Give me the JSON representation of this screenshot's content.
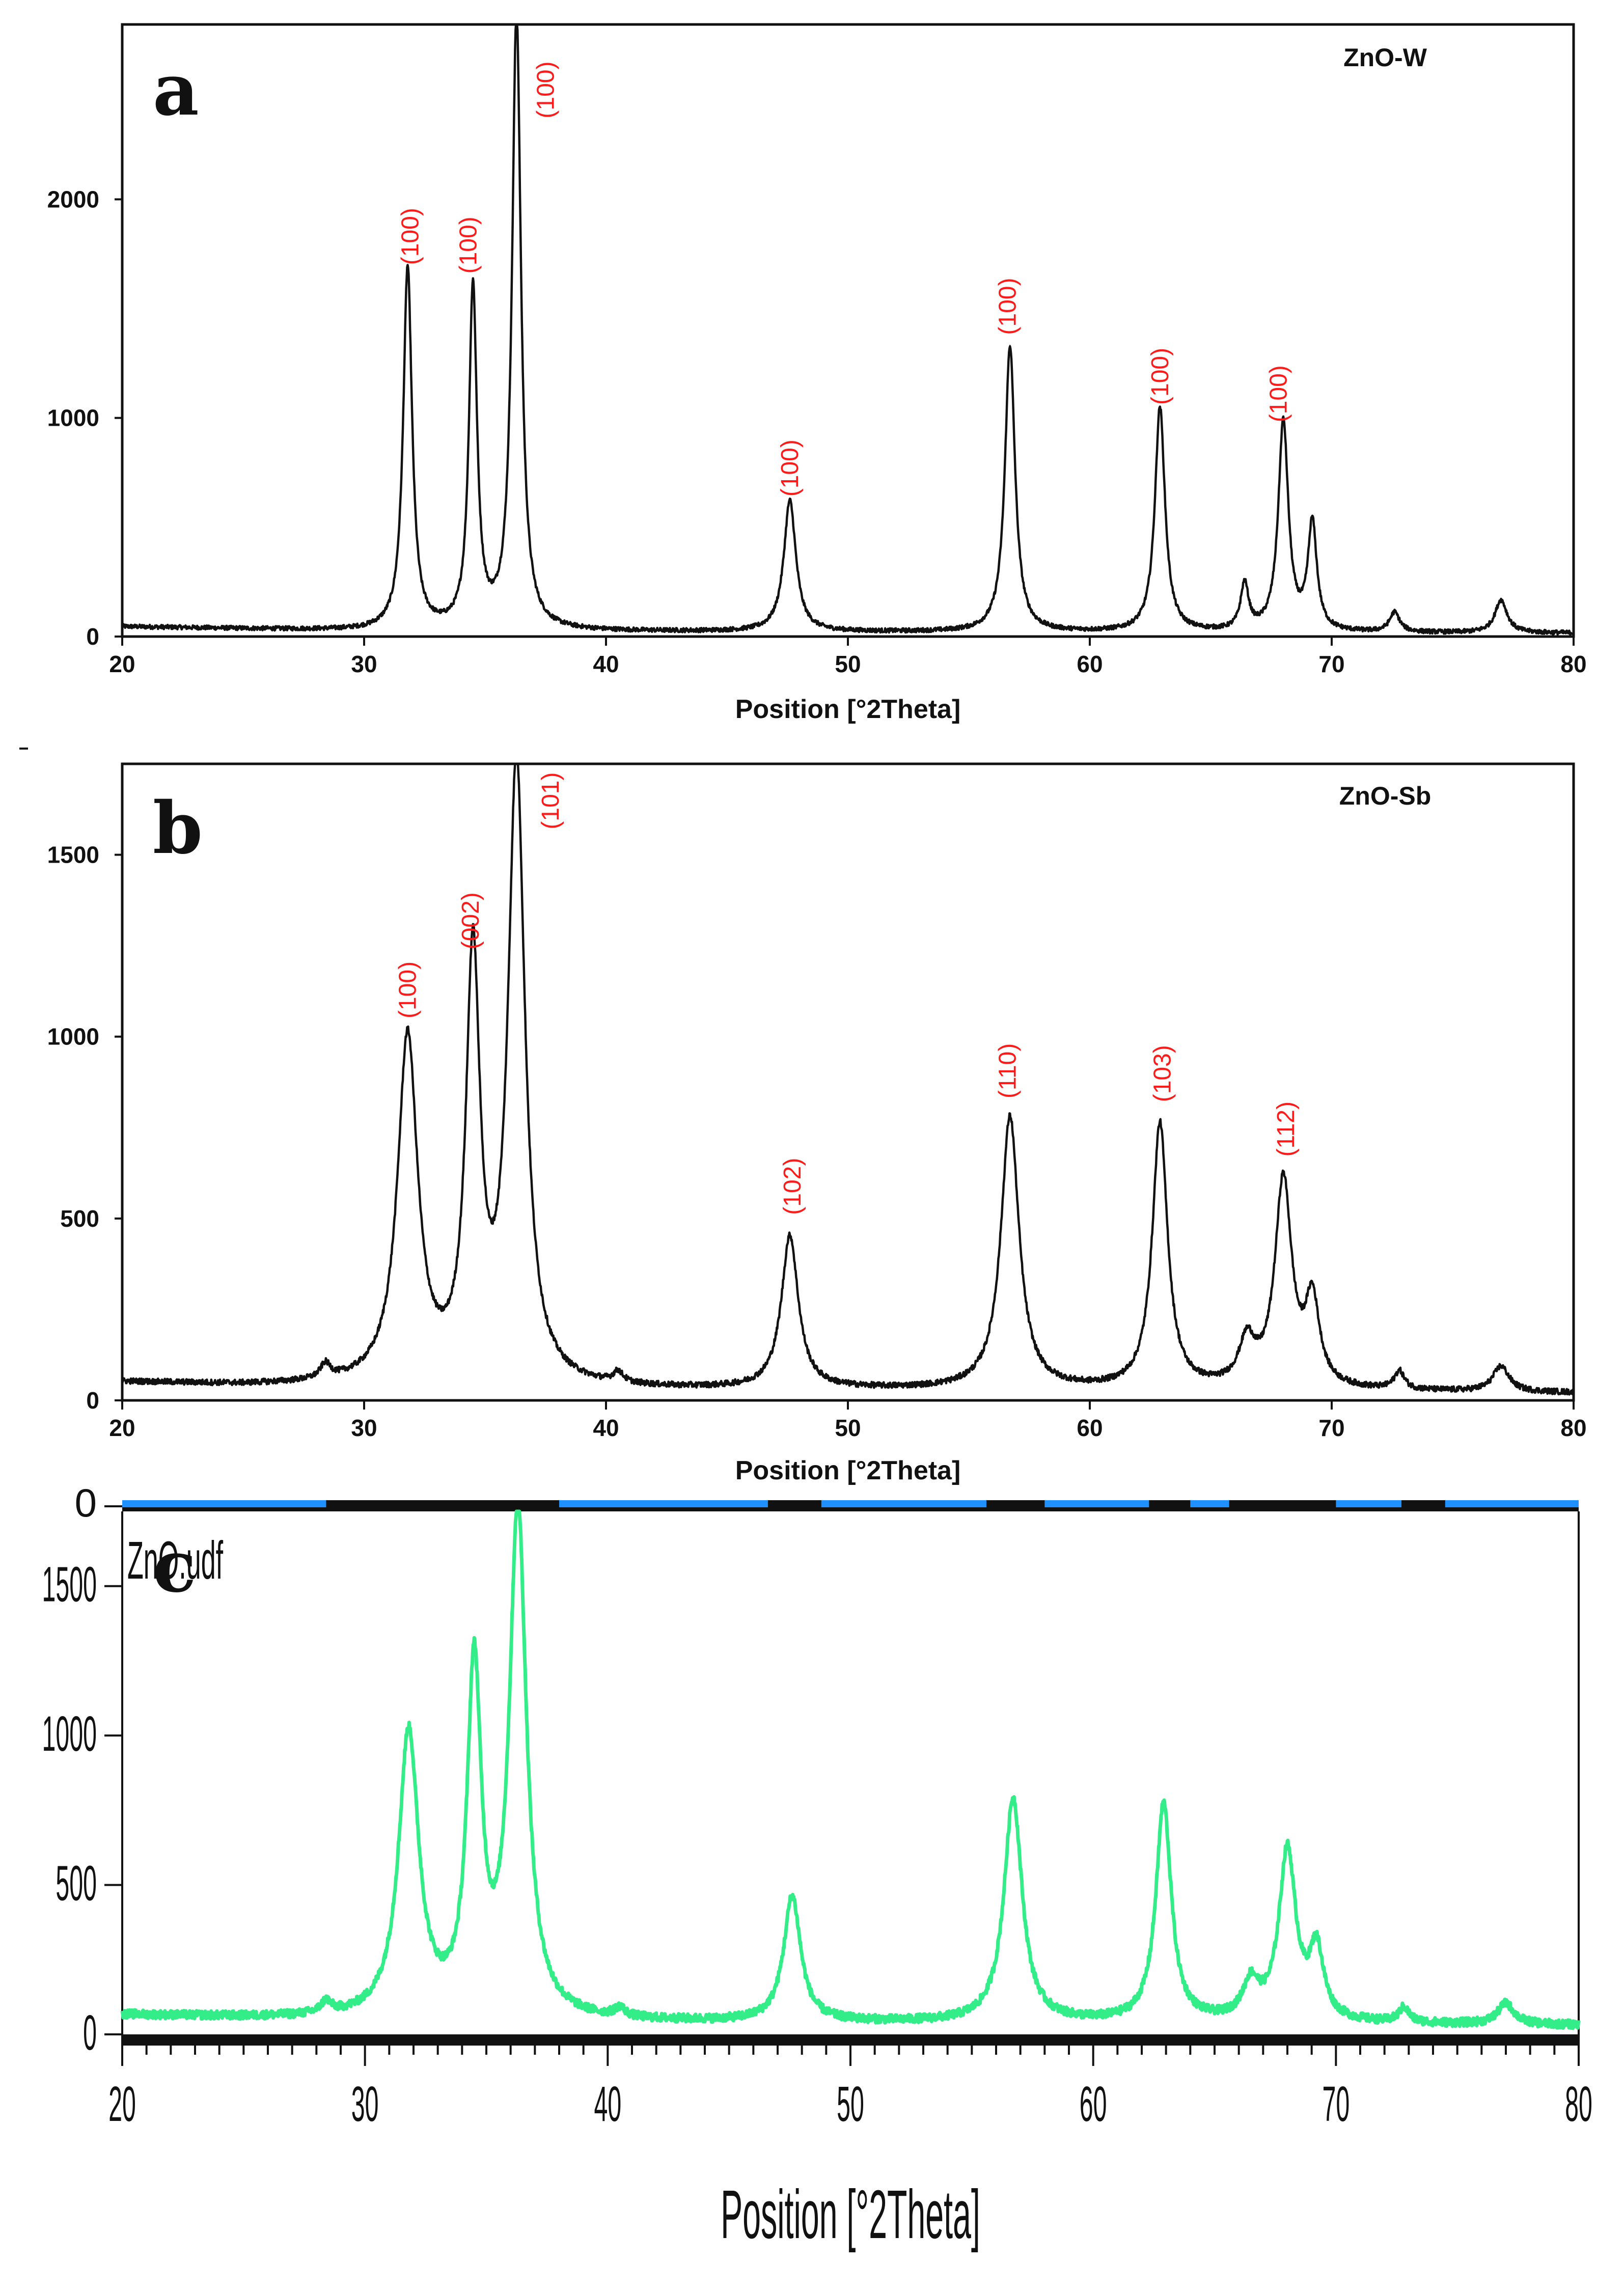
{
  "chart_data": [
    {
      "type": "line",
      "panel_label": "a",
      "sample": "ZnO-W",
      "xlabel": "Position [°2Theta]",
      "ylabel": "",
      "xlim": [
        20,
        80
      ],
      "ylim": [
        0,
        2800
      ],
      "xticks": [
        "20",
        "30",
        "40",
        "50",
        "60",
        "70",
        "80"
      ],
      "yticks": [
        "0",
        "1000",
        "2000"
      ],
      "ytick_values": [
        0,
        1000,
        2000
      ],
      "color": "#111111",
      "baseline": [
        [
          20,
          45
        ],
        [
          30,
          25
        ],
        [
          50,
          20
        ],
        [
          80,
          15
        ]
      ],
      "noise": 10,
      "peaks": [
        {
          "x": 31.8,
          "y": 1660,
          "w": 0.22
        },
        {
          "x": 34.5,
          "y": 1560,
          "w": 0.2
        },
        {
          "x": 36.3,
          "y": 2820,
          "w": 0.22
        },
        {
          "x": 47.6,
          "y": 600,
          "w": 0.3
        },
        {
          "x": 56.7,
          "y": 1310,
          "w": 0.25
        },
        {
          "x": 62.9,
          "y": 1030,
          "w": 0.25
        },
        {
          "x": 66.4,
          "y": 210,
          "w": 0.2
        },
        {
          "x": 68.0,
          "y": 960,
          "w": 0.25
        },
        {
          "x": 69.2,
          "y": 490,
          "w": 0.22
        },
        {
          "x": 72.6,
          "y": 90,
          "w": 0.25
        },
        {
          "x": 77.0,
          "y": 150,
          "w": 0.3
        }
      ],
      "annotations": [
        {
          "text": "(100)",
          "x": 31.9,
          "y": 1700
        },
        {
          "text": "(100)",
          "x": 34.3,
          "y": 1660
        },
        {
          "text": "(100)",
          "x": 37.5,
          "y": 2370
        },
        {
          "text": "(100)",
          "x": 47.6,
          "y": 640
        },
        {
          "text": "(100)",
          "x": 56.6,
          "y": 1380
        },
        {
          "text": "(100)",
          "x": 62.9,
          "y": 1060
        },
        {
          "text": "(100)",
          "x": 67.8,
          "y": 980
        }
      ]
    },
    {
      "type": "line",
      "panel_label": "b",
      "sample": "ZnO-Sb",
      "xlabel": "Position [°2Theta]",
      "ylabel": "",
      "xlim": [
        20,
        80
      ],
      "ylim": [
        0,
        1750
      ],
      "xticks": [
        "20",
        "30",
        "40",
        "50",
        "60",
        "70",
        "80"
      ],
      "yticks": [
        "0",
        "500",
        "1000",
        "1500"
      ],
      "ytick_values": [
        0,
        500,
        1000,
        1500
      ],
      "color": "#111111",
      "baseline": [
        [
          20,
          50
        ],
        [
          25,
          40
        ],
        [
          30,
          38
        ],
        [
          40,
          28
        ],
        [
          50,
          28
        ],
        [
          70,
          25
        ],
        [
          80,
          20
        ]
      ],
      "noise": 8,
      "peaks": [
        {
          "x": 28.4,
          "y": 40,
          "w": 0.25
        },
        {
          "x": 31.8,
          "y": 950,
          "w": 0.5
        },
        {
          "x": 34.5,
          "y": 1150,
          "w": 0.35
        },
        {
          "x": 36.3,
          "y": 1700,
          "w": 0.42
        },
        {
          "x": 40.5,
          "y": 30,
          "w": 0.25
        },
        {
          "x": 47.6,
          "y": 420,
          "w": 0.42
        },
        {
          "x": 56.7,
          "y": 750,
          "w": 0.45
        },
        {
          "x": 62.9,
          "y": 730,
          "w": 0.38
        },
        {
          "x": 66.5,
          "y": 120,
          "w": 0.4
        },
        {
          "x": 68.0,
          "y": 570,
          "w": 0.42
        },
        {
          "x": 69.2,
          "y": 230,
          "w": 0.35
        },
        {
          "x": 72.8,
          "y": 50,
          "w": 0.25
        },
        {
          "x": 77.0,
          "y": 70,
          "w": 0.4
        }
      ],
      "annotations": [
        {
          "text": "(100)",
          "x": 31.8,
          "y": 1050
        },
        {
          "text": "(002)",
          "x": 34.4,
          "y": 1240
        },
        {
          "text": "(101)",
          "x": 37.7,
          "y": 1570
        },
        {
          "text": "(102)",
          "x": 47.7,
          "y": 510
        },
        {
          "text": "(110)",
          "x": 56.6,
          "y": 830
        },
        {
          "text": "(103)",
          "x": 63.0,
          "y": 820
        },
        {
          "text": "(112)",
          "x": 68.1,
          "y": 670
        }
      ]
    },
    {
      "type": "line",
      "panel_label": "c",
      "sample": "ZnO.udf",
      "xlabel": "Position [°2Theta]",
      "ylabel": "",
      "xlim": [
        20,
        80
      ],
      "ylim": [
        0,
        1750
      ],
      "xticks": [
        "20",
        "30",
        "40",
        "50",
        "60",
        "70",
        "80"
      ],
      "yticks": [
        "0",
        "500",
        "1000",
        "1500"
      ],
      "ytick_values": [
        0,
        500,
        1000,
        1500
      ],
      "top_label": "0",
      "color": "#33ee88",
      "baseline": [
        [
          20,
          65
        ],
        [
          25,
          55
        ],
        [
          30,
          48
        ],
        [
          40,
          40
        ],
        [
          50,
          38
        ],
        [
          70,
          35
        ],
        [
          80,
          30
        ]
      ],
      "noise": 14,
      "peaks": [
        {
          "x": 28.4,
          "y": 40,
          "w": 0.25
        },
        {
          "x": 31.8,
          "y": 950,
          "w": 0.5
        },
        {
          "x": 34.5,
          "y": 1150,
          "w": 0.35
        },
        {
          "x": 36.3,
          "y": 1700,
          "w": 0.42
        },
        {
          "x": 40.5,
          "y": 30,
          "w": 0.25
        },
        {
          "x": 47.6,
          "y": 420,
          "w": 0.42
        },
        {
          "x": 56.7,
          "y": 750,
          "w": 0.45
        },
        {
          "x": 62.9,
          "y": 730,
          "w": 0.38
        },
        {
          "x": 66.5,
          "y": 120,
          "w": 0.4
        },
        {
          "x": 68.0,
          "y": 570,
          "w": 0.42
        },
        {
          "x": 69.2,
          "y": 230,
          "w": 0.35
        },
        {
          "x": 72.8,
          "y": 50,
          "w": 0.25
        },
        {
          "x": 77.0,
          "y": 70,
          "w": 0.4
        }
      ],
      "blue_bar_segments": [
        [
          20,
          28.4
        ],
        [
          38.0,
          46.6
        ],
        [
          48.8,
          55.6
        ],
        [
          58.0,
          62.3
        ],
        [
          64.0,
          65.6
        ],
        [
          70.0,
          72.7
        ],
        [
          74.5,
          80
        ]
      ],
      "annotations": []
    }
  ]
}
